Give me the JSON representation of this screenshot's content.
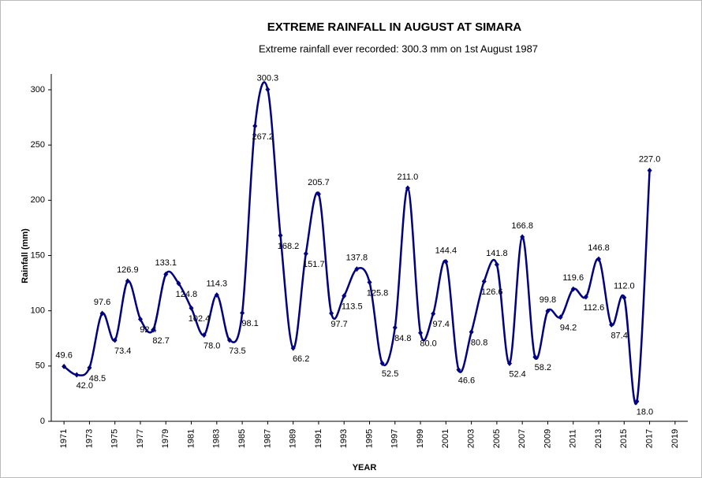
{
  "chart_data": {
    "type": "line",
    "title": "EXTREME RAINFALL IN AUGUST AT SIMARA",
    "subtitle": "Extreme rainfall ever recorded: 300.3 mm on 1st August 1987",
    "x_label": "YEAR",
    "y_label": "Rainfall (mm)",
    "x": [
      1971,
      1972,
      1973,
      1974,
      1975,
      1976,
      1977,
      1978,
      1979,
      1980,
      1981,
      1982,
      1983,
      1984,
      1985,
      1986,
      1987,
      1988,
      1989,
      1990,
      1991,
      1992,
      1993,
      1994,
      1995,
      1996,
      1997,
      1998,
      1999,
      2000,
      2001,
      2002,
      2003,
      2004,
      2005,
      2006,
      2007,
      2008,
      2009,
      2010,
      2011,
      2012,
      2013,
      2014,
      2015,
      2016,
      2017
    ],
    "series": [
      {
        "name": "Rainfall",
        "color": "#000080",
        "values": [
          49.6,
          42.0,
          48.5,
          97.6,
          73.4,
          126.9,
          92.4,
          82.7,
          133.1,
          124.8,
          102.4,
          78.0,
          114.3,
          73.5,
          98.1,
          267.2,
          300.3,
          168.2,
          66.2,
          151.7,
          205.7,
          97.7,
          113.5,
          137.8,
          125.8,
          52.5,
          84.8,
          211.0,
          80.0,
          97.4,
          144.4,
          46.6,
          80.8,
          126.6,
          141.8,
          52.4,
          166.8,
          58.2,
          99.8,
          94.2,
          119.6,
          112.6,
          146.8,
          87.4,
          112.0,
          18.0,
          227.0
        ],
        "value_labels": [
          "49.6",
          "42.0",
          "48.5",
          "97.6",
          "73.4",
          "126.9",
          "92.4",
          "82.7",
          "133.1",
          "124.8",
          "102.4",
          "78.0",
          "114.3",
          "73.5",
          "98.1",
          "267.2",
          "300.3",
          "168.2",
          "66.2",
          "151.7",
          "205.7",
          "97.7",
          "113.5",
          "137.8",
          "125.8",
          "52.5",
          "84.8",
          "211.0",
          "80.0",
          "97.4",
          "144.4",
          "46.6",
          "80.8",
          "126.6",
          "141.8",
          "52.4",
          "166.8",
          "58.2",
          "99.8",
          "94.2",
          "119.6",
          "112.6",
          "146.8",
          "87.4",
          "112.0",
          "18.0",
          "227.0"
        ]
      }
    ],
    "xlim": [
      1970,
      2020
    ],
    "xticks": [
      1971,
      1973,
      1975,
      1977,
      1979,
      1981,
      1983,
      1985,
      1987,
      1989,
      1991,
      1993,
      1995,
      1997,
      1999,
      2001,
      2003,
      2005,
      2007,
      2009,
      2011,
      2013,
      2015,
      2017,
      2019
    ],
    "ylim": [
      0,
      300
    ],
    "yticks": [
      0,
      50,
      100,
      150,
      200,
      250,
      300
    ],
    "grid": false
  }
}
